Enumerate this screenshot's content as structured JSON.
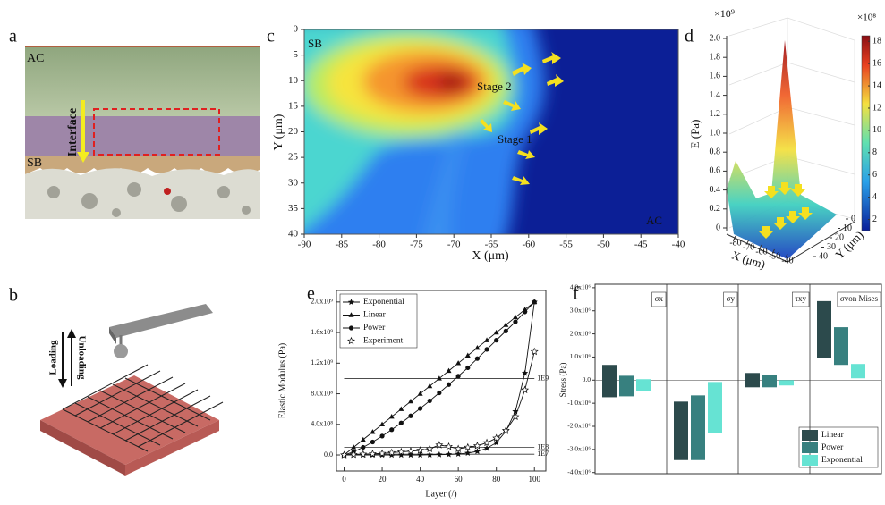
{
  "panel_labels": [
    "a",
    "b",
    "c",
    "d",
    "e",
    "f"
  ],
  "panel_a": {
    "labels": [
      "AC",
      "Interface",
      "SB"
    ]
  },
  "panel_b": {
    "labels": [
      "Loading",
      "Unloading"
    ]
  },
  "chart_data": [
    {
      "type": "contour",
      "xlabel": "X (μm)",
      "ylabel": "Y (μm)",
      "xlim": [
        -90,
        -40
      ],
      "ylim": [
        0,
        40
      ],
      "y_inverted": true,
      "xticks": [
        -90,
        -85,
        -80,
        -75,
        -70,
        -65,
        -60,
        -55,
        -50,
        -45,
        -40
      ],
      "yticks": [
        0,
        5,
        10,
        15,
        20,
        25,
        30,
        35,
        40
      ],
      "annotations": [
        "SB",
        "Stage 2",
        "Stage 1",
        "AC"
      ]
    },
    {
      "type": "surface",
      "xlabel": "X (μm)",
      "ylabel": "Y (μm)",
      "zlabel": "E (Pa)",
      "z_multiplier": "×10⁹",
      "colorbar_multiplier": "×10⁸",
      "xlim": [
        -80,
        -40
      ],
      "xticks": [
        -80,
        -70,
        -60,
        -50,
        -40
      ],
      "ylim": [
        0,
        40
      ],
      "yticks": [
        0,
        10,
        20,
        30,
        40
      ],
      "zlim": [
        0,
        2
      ],
      "zticks": [
        0,
        0.2,
        0.4,
        0.6,
        0.8,
        {
          "value": 1,
          "label": "1.0"
        },
        1.2,
        1.4,
        1.6,
        1.8,
        {
          "value": 2,
          "label": "2.0"
        }
      ],
      "clim": [
        1,
        18.5
      ],
      "colorbar_ticks": [
        2,
        4,
        6,
        8,
        10,
        12,
        14,
        16,
        18
      ]
    },
    {
      "type": "line",
      "xlabel": "Layer (/)",
      "ylabel": "Elastic Modulus (Pa)",
      "xlim": [
        -4,
        106
      ],
      "xticks": [
        0,
        20,
        40,
        60,
        80,
        100
      ],
      "ylim": [
        -210000000,
        2150000000
      ],
      "yticks": [
        {
          "value": 0,
          "label": "0.0"
        },
        {
          "value": 400000000,
          "label": "4.0x10⁸"
        },
        {
          "value": 800000000,
          "label": "8.0x10⁸"
        },
        {
          "value": 1200000000,
          "label": "1.2x10⁹"
        },
        {
          "value": 1600000000,
          "label": "1.6x10⁹"
        },
        {
          "value": 2000000000,
          "label": "2.0x10⁹"
        }
      ],
      "reference_lines": [
        {
          "value": 1000000000,
          "label": "1E9"
        },
        {
          "value": 100000000,
          "label": "1E8"
        },
        {
          "value": 10000000,
          "label": "1E7"
        }
      ],
      "x": [
        0,
        5,
        10,
        15,
        20,
        25,
        30,
        35,
        40,
        45,
        50,
        55,
        60,
        65,
        70,
        75,
        80,
        85,
        90,
        95,
        100
      ],
      "series": [
        {
          "name": "Exponential",
          "color": "#111111",
          "marker": "star",
          "values": [
            0,
            0,
            0,
            0,
            0,
            0,
            0,
            0,
            0,
            2000000,
            4000000,
            7000000,
            13000000,
            25000000,
            47000000,
            88000000,
            160000000,
            310000000,
            570000000,
            1070000000,
            2000000000
          ]
        },
        {
          "name": "Linear",
          "color": "#111111",
          "marker": "triangle",
          "values": [
            0,
            100000000,
            200000000,
            300000000,
            400000000,
            500000000,
            600000000,
            700000000,
            800000000,
            900000000,
            1000000000,
            1100000000,
            1200000000,
            1300000000,
            1400000000,
            1500000000,
            1600000000,
            1700000000,
            1800000000,
            1900000000,
            2000000000
          ]
        },
        {
          "name": "Power",
          "color": "#111111",
          "marker": "circle",
          "values": [
            0,
            41000000,
            100000000,
            170000000,
            247000000,
            330000000,
            418000000,
            511000000,
            608000000,
            708000000,
            812000000,
            920000000,
            1030000000,
            1140000000,
            1260000000,
            1380000000,
            1500000000,
            1620000000,
            1740000000,
            1870000000,
            2000000000
          ]
        },
        {
          "name": "Experiment",
          "color": "#111111",
          "marker": "open-star",
          "values": [
            0,
            5000000,
            10000000,
            15000000,
            20000000,
            30000000,
            40000000,
            50000000,
            60000000,
            80000000,
            130000000,
            110000000,
            80000000,
            100000000,
            120000000,
            160000000,
            220000000,
            320000000,
            500000000,
            850000000,
            1350000000
          ]
        }
      ]
    },
    {
      "type": "floating_bar",
      "ylabel": "Stress (Pa)",
      "ylim": [
        -4050000,
        4150000
      ],
      "yticks": [
        {
          "value": 4000000,
          "label": "4.0x10⁶"
        },
        {
          "value": 3000000,
          "label": "3.0x10⁶"
        },
        {
          "value": 2000000,
          "label": "2.0x10⁶"
        },
        {
          "value": 1000000,
          "label": "1.0x10⁶"
        },
        {
          "value": 0,
          "label": "0.0"
        },
        {
          "value": -1000000,
          "label": "-1.0x10⁶"
        },
        {
          "value": -2000000,
          "label": "-2.0x10⁶"
        },
        {
          "value": -3000000,
          "label": "-3.0x10⁶"
        },
        {
          "value": -4000000,
          "label": "-4.0x10⁶"
        }
      ],
      "categories": [
        "σx",
        "σy",
        "τxy",
        "σvon Mises"
      ],
      "series": [
        {
          "name": "Linear",
          "color": "#2c4a4c",
          "low": [
            -740000,
            -3460000,
            -310000,
            970000
          ],
          "high": [
            660000,
            -930000,
            310000,
            3420000
          ]
        },
        {
          "name": "Power",
          "color": "#37807f",
          "low": [
            -700000,
            -3460000,
            -310000,
            660000
          ],
          "high": [
            190000,
            -660000,
            230000,
            2290000
          ]
        },
        {
          "name": "Exponential",
          "color": "#66e3d3",
          "low": [
            -470000,
            -2300000,
            -230000,
            80000
          ],
          "high": [
            40000,
            -80000,
            0,
            700000
          ]
        }
      ]
    }
  ]
}
